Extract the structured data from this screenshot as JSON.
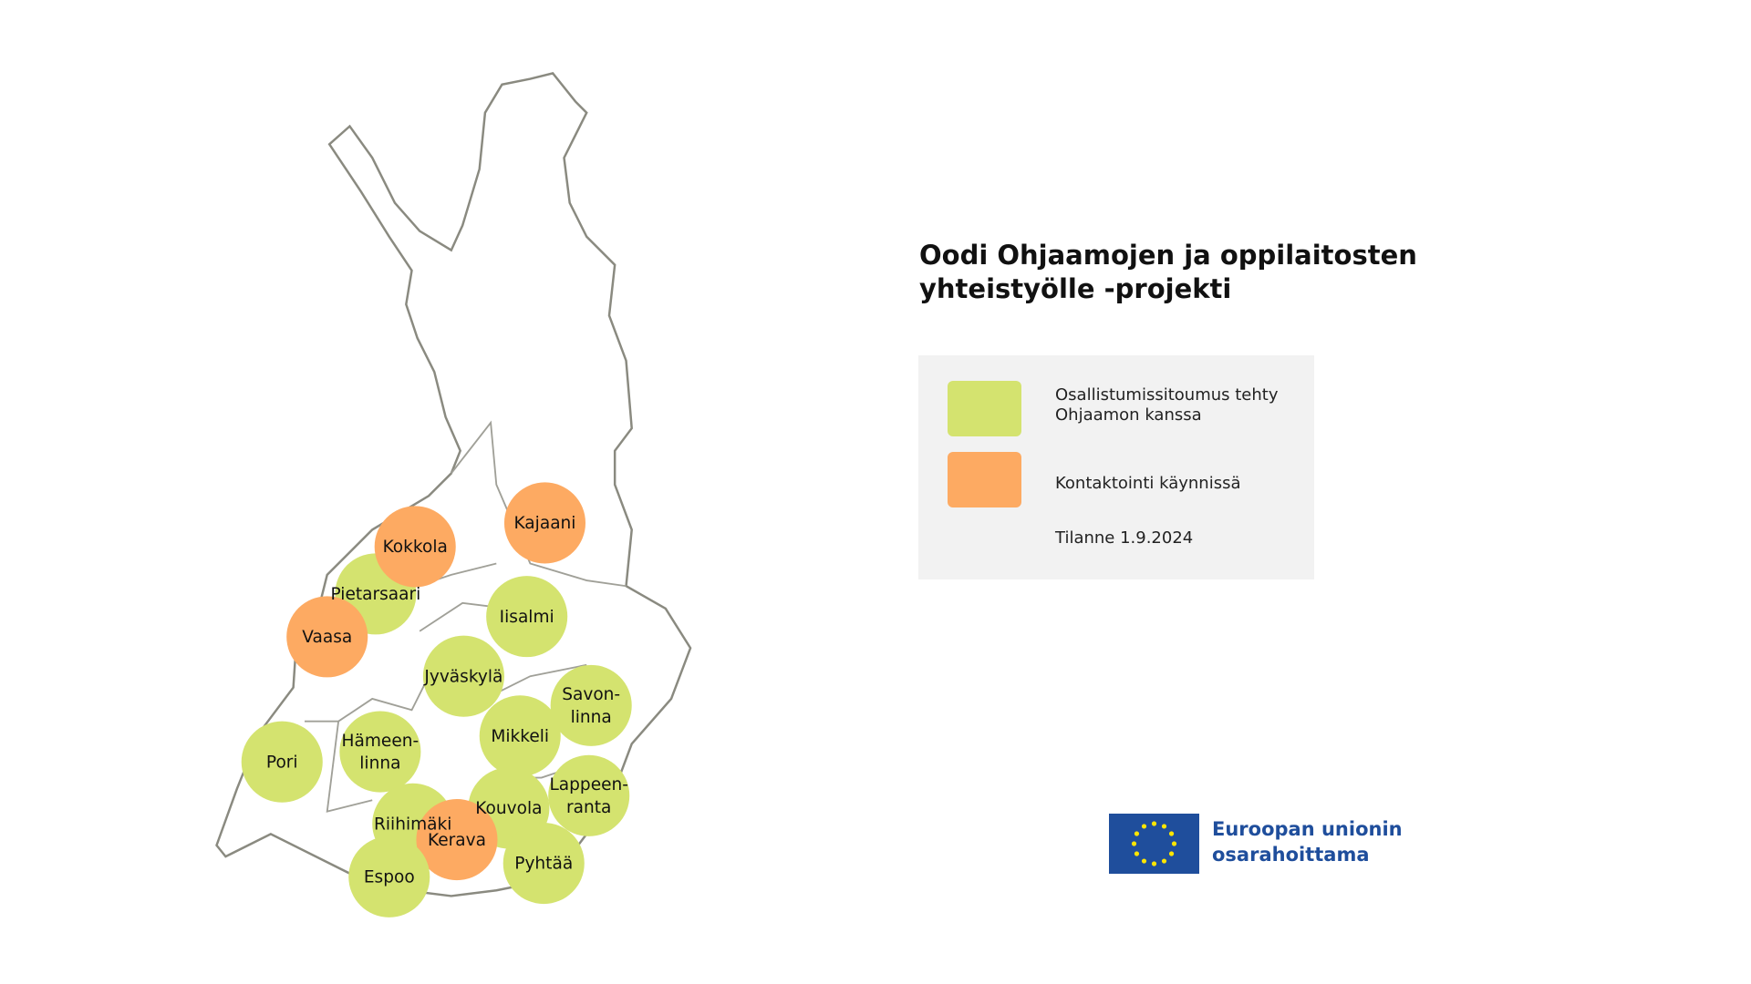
{
  "title": "Oodi Ohjaamojen ja oppilaitosten yhteistyölle -projekti",
  "legend": {
    "items": [
      {
        "label": "Osallistumissitoumus tehty Ohjaamon kanssa",
        "color": "#d4e36f"
      },
      {
        "label": "Kontaktointi käynnissä",
        "color": "#fdaa62"
      }
    ],
    "status": "Tilanne 1.9.2024"
  },
  "cities": [
    {
      "lines": [
        "Kajaani"
      ],
      "color": "#fdaa62"
    },
    {
      "lines": [
        "Pietarsaari"
      ],
      "color": "#d4e36f"
    },
    {
      "lines": [
        "Kokkola"
      ],
      "color": "#fdaa62"
    },
    {
      "lines": [
        "Vaasa"
      ],
      "color": "#fdaa62"
    },
    {
      "lines": [
        "Iisalmi"
      ],
      "color": "#d4e36f"
    },
    {
      "lines": [
        "Jyväskylä"
      ],
      "color": "#d4e36f"
    },
    {
      "lines": [
        "Savon-",
        "linna"
      ],
      "color": "#d4e36f"
    },
    {
      "lines": [
        "Mikkeli"
      ],
      "color": "#d4e36f"
    },
    {
      "lines": [
        "Pori"
      ],
      "color": "#d4e36f"
    },
    {
      "lines": [
        "Hämeen-",
        "linna"
      ],
      "color": "#d4e36f"
    },
    {
      "lines": [
        "Lappeen-",
        "ranta"
      ],
      "color": "#d4e36f"
    },
    {
      "lines": [
        "Kouvola"
      ],
      "color": "#d4e36f"
    },
    {
      "lines": [
        "Riihimäki"
      ],
      "color": "#d4e36f"
    },
    {
      "lines": [
        "Kerava"
      ],
      "color": "#fdaa62"
    },
    {
      "lines": [
        "Pyhtää"
      ],
      "color": "#d4e36f"
    },
    {
      "lines": [
        "Espoo"
      ],
      "color": "#d4e36f"
    }
  ],
  "funding": {
    "lines": [
      "Euroopan unionin",
      "osarahoittama"
    ]
  }
}
